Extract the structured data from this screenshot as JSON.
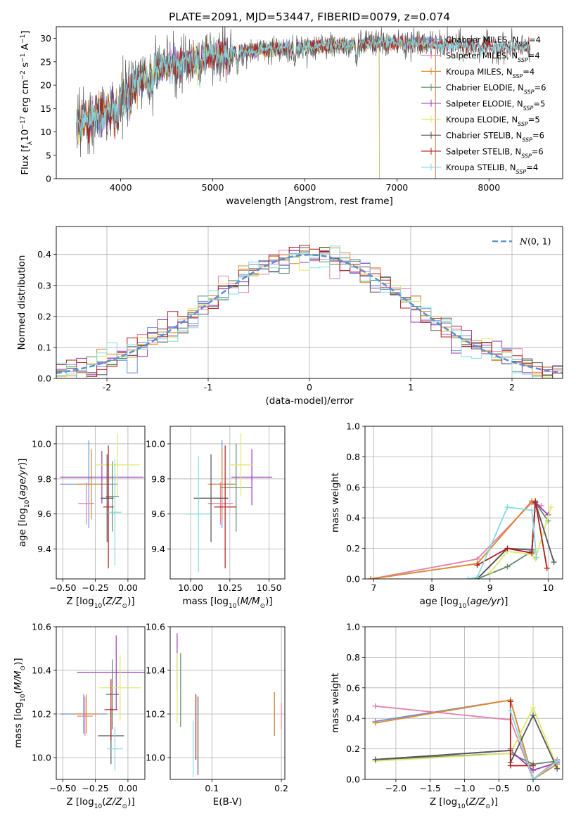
{
  "figure_title": "PLATE=2091, MJD=53447, FIBERID=0079, z=0.074",
  "colors": {
    "Chabrier MILES": "#6a8fd8",
    "Salpeter MILES": "#e47fae",
    "Kroupa MILES": "#e08a2a",
    "Chabrier ELODIE": "#5f8a67",
    "Salpeter ELODIE": "#9b3bb5",
    "Kroupa ELODIE": "#dfe86a",
    "Chabrier STELIB": "#555555",
    "Salpeter STELIB": "#b11d1d",
    "Kroupa STELIB": "#82dbe0"
  },
  "chart_data": [
    {
      "id": "spectrum",
      "type": "line",
      "xlabel": "wavelength [Angstrom, rest frame]",
      "ylabel": "Flux [f_λ 10^-17 erg cm^-2 s^-1 A^-1]",
      "xlim": [
        3300,
        8800
      ],
      "ylim": [
        0,
        32.5
      ],
      "xticks": [
        4000,
        5000,
        6000,
        7000,
        8000
      ],
      "yticks": [
        0,
        5,
        10,
        15,
        20,
        25,
        30
      ],
      "legend_position": "right",
      "series_labels": [
        "Chabrier MILES, N_SSP=4",
        "Salpeter MILES, N_SSP=4",
        "Kroupa MILES, N_SSP=4",
        "Chabrier ELODIE, N_SSP=6",
        "Salpeter ELODIE, N_SSP=5",
        "Kroupa ELODIE, N_SSP=5",
        "Chabrier STELIB, N_SSP=6",
        "Salpeter STELIB, N_SSP=6",
        "Kroupa STELIB, N_SSP=4"
      ],
      "series_names": [
        "Chabrier MILES",
        "Salpeter MILES",
        "Kroupa MILES",
        "Chabrier ELODIE",
        "Salpeter ELODIE",
        "Kroupa ELODIE",
        "Chabrier STELIB",
        "Salpeter STELIB",
        "Kroupa STELIB"
      ],
      "series_xrange": [
        [
          3520,
          7420
        ],
        [
          3520,
          7420
        ],
        [
          3520,
          7420
        ],
        [
          3520,
          6810
        ],
        [
          3520,
          6810
        ],
        [
          3520,
          6810
        ],
        [
          3520,
          8450
        ],
        [
          3520,
          8450
        ],
        [
          3520,
          8450
        ]
      ],
      "continuum": {
        "x": [
          3520,
          3600,
          3700,
          3800,
          3900,
          4000,
          4100,
          4200,
          4300,
          4500,
          4800,
          5000,
          5200,
          5500,
          5800,
          6000,
          6300,
          6500,
          6800,
          7000,
          7400,
          7800,
          8000,
          8450
        ],
        "y": [
          11.5,
          12,
          13,
          14,
          15,
          17,
          19,
          21,
          22.5,
          24,
          25.5,
          26.5,
          27,
          27.5,
          28,
          28.2,
          28.5,
          28.8,
          29,
          29,
          28.7,
          28.4,
          28.2,
          28
        ]
      }
    },
    {
      "id": "residuals",
      "type": "histogram",
      "xlabel": "(data-model)/error",
      "ylabel": "Normed distribution",
      "xlim": [
        -2.5,
        2.5
      ],
      "ylim": [
        0,
        0.49
      ],
      "xticks": [
        -2,
        -1,
        0,
        1,
        2
      ],
      "yticks": [
        0.0,
        0.1,
        0.2,
        0.3,
        0.4
      ],
      "bin_width": 0.1,
      "legend_label": "N(0,1)",
      "legend_position": "top-right"
    },
    {
      "id": "age-vs-Z",
      "type": "errorbar",
      "xlabel": "Z [log10(Z/Z⊙)]",
      "ylabel": "age [log10(age/yr)]",
      "xlim": [
        -0.55,
        0.13
      ],
      "ylim": [
        9.23,
        10.1
      ],
      "xticks": [
        -0.5,
        -0.25,
        0.0
      ],
      "xtick_labels": [
        "−0.50",
        "−0.25",
        "0.00"
      ],
      "yticks": [
        9.4,
        9.6,
        9.8,
        10.0
      ],
      "points": [
        {
          "series": "Chabrier MILES",
          "x": -0.3,
          "xerr": 0.22,
          "y": 9.77,
          "yerr": 0.25
        },
        {
          "series": "Salpeter MILES",
          "x": -0.32,
          "xerr": 0.06,
          "y": 9.66,
          "yerr": 0.12
        },
        {
          "series": "Kroupa MILES",
          "x": -0.28,
          "xerr": 0.12,
          "y": 9.77,
          "yerr": 0.2
        },
        {
          "series": "Chabrier ELODIE",
          "x": -0.12,
          "xerr": 0.05,
          "y": 9.7,
          "yerr": 0.2
        },
        {
          "series": "Salpeter ELODIE",
          "x": -0.2,
          "xerr": 0.32,
          "y": 9.81,
          "yerr": 0.15
        },
        {
          "series": "Kroupa ELODIE",
          "x": -0.08,
          "xerr": 0.17,
          "y": 9.88,
          "yerr": 0.18
        },
        {
          "series": "Chabrier STELIB",
          "x": -0.16,
          "xerr": 0.05,
          "y": 9.69,
          "yerr": 0.25
        },
        {
          "series": "Salpeter STELIB",
          "x": -0.15,
          "xerr": 0.04,
          "y": 9.64,
          "yerr": 0.35
        },
        {
          "series": "Kroupa STELIB",
          "x": -0.1,
          "xerr": 0.05,
          "y": 9.61,
          "yerr": 0.3
        }
      ]
    },
    {
      "id": "age-vs-mass",
      "type": "errorbar",
      "xlabel": "mass [log10(M/M⊙)]",
      "ylabel": "",
      "xlim": [
        9.87,
        10.6
      ],
      "ylim": [
        9.23,
        10.1
      ],
      "xticks": [
        10.0,
        10.25,
        10.5
      ],
      "xtick_labels": [
        "10.00",
        "10.25",
        "10.50"
      ],
      "yticks": [
        9.4,
        9.6,
        9.8,
        10.0
      ],
      "points": [
        {
          "series": "Chabrier MILES",
          "x": 10.2,
          "xerr": 0.08,
          "y": 9.77,
          "yerr": 0.25
        },
        {
          "series": "Salpeter MILES",
          "x": 10.19,
          "xerr": 0.08,
          "y": 9.66,
          "yerr": 0.12
        },
        {
          "series": "Kroupa MILES",
          "x": 10.2,
          "xerr": 0.09,
          "y": 9.77,
          "yerr": 0.2
        },
        {
          "series": "Chabrier ELODIE",
          "x": 10.29,
          "xerr": 0.1,
          "y": 9.75,
          "yerr": 0.25
        },
        {
          "series": "Salpeter ELODIE",
          "x": 10.39,
          "xerr": 0.13,
          "y": 9.81,
          "yerr": 0.16
        },
        {
          "series": "Kroupa ELODIE",
          "x": 10.32,
          "xerr": 0.07,
          "y": 9.88,
          "yerr": 0.18
        },
        {
          "series": "Chabrier STELIB",
          "x": 10.13,
          "xerr": 0.11,
          "y": 9.69,
          "yerr": 0.25
        },
        {
          "series": "Salpeter STELIB",
          "x": 10.22,
          "xerr": 0.07,
          "y": 9.64,
          "yerr": 0.35
        },
        {
          "series": "Kroupa STELIB",
          "x": 10.05,
          "xerr": 0.08,
          "y": 9.6,
          "yerr": 0.33
        }
      ]
    },
    {
      "id": "mass-weight-vs-age",
      "type": "line",
      "xlabel": "age [log10(age/yr)]",
      "ylabel": "mass weight",
      "xlim": [
        6.85,
        10.25
      ],
      "ylim": [
        0,
        1.0
      ],
      "xticks": [
        7,
        8,
        9,
        10
      ],
      "yticks": [
        0.0,
        0.2,
        0.4,
        0.6,
        0.8,
        1.0
      ],
      "series": [
        {
          "name": "Chabrier MILES",
          "x": [
            6.95,
            8.78,
            9.72,
            9.78
          ],
          "y": [
            0.0,
            0.1,
            0.51,
            0.49
          ]
        },
        {
          "name": "Salpeter MILES",
          "x": [
            6.95,
            8.78,
            9.72,
            9.88
          ],
          "y": [
            0.0,
            0.13,
            0.5,
            0.48
          ]
        },
        {
          "name": "Kroupa MILES",
          "x": [
            6.95,
            8.78,
            9.72,
            9.78
          ],
          "y": [
            0.0,
            0.1,
            0.51,
            0.49
          ]
        },
        {
          "name": "Chabrier ELODIE",
          "x": [
            8.78,
            9.3,
            9.72,
            9.78,
            10.0
          ],
          "y": [
            0.0,
            0.08,
            0.18,
            0.5,
            0.38
          ]
        },
        {
          "name": "Salpeter ELODIE",
          "x": [
            8.78,
            9.3,
            9.72,
            9.78,
            10.0
          ],
          "y": [
            0.0,
            0.2,
            0.17,
            0.5,
            0.42
          ]
        },
        {
          "name": "Kroupa ELODIE",
          "x": [
            9.0,
            9.3,
            9.72,
            9.78,
            10.05
          ],
          "y": [
            0.04,
            0.18,
            0.16,
            0.13,
            0.47
          ]
        },
        {
          "name": "Chabrier STELIB",
          "x": [
            8.78,
            9.3,
            9.72,
            9.78,
            10.1
          ],
          "y": [
            0.0,
            0.2,
            0.19,
            0.5,
            0.11
          ]
        },
        {
          "name": "Salpeter STELIB",
          "x": [
            8.78,
            9.3,
            9.72,
            9.78,
            9.98
          ],
          "y": [
            0.09,
            0.2,
            0.17,
            0.51,
            0.07
          ]
        },
        {
          "name": "Kroupa STELIB",
          "x": [
            8.62,
            8.78,
            9.3,
            9.72,
            9.8
          ],
          "y": [
            0.0,
            0.01,
            0.47,
            0.45,
            0.14
          ]
        }
      ]
    },
    {
      "id": "mass-vs-Z",
      "type": "errorbar",
      "xlabel": "Z [log10(Z/Z⊙)]",
      "ylabel": "mass [log10(M/M⊙)]",
      "xlim": [
        -0.55,
        0.13
      ],
      "ylim": [
        9.9,
        10.6
      ],
      "xticks": [
        -0.5,
        -0.25,
        0.0
      ],
      "xtick_labels": [
        "−0.50",
        "−0.25",
        "0.00"
      ],
      "yticks": [
        10.0,
        10.2,
        10.4,
        10.6
      ],
      "points": [
        {
          "series": "Chabrier MILES",
          "x": -0.34,
          "xerr": 0.18,
          "y": 10.2,
          "yerr": 0.09
        },
        {
          "series": "Salpeter MILES",
          "x": -0.33,
          "xerr": 0.06,
          "y": 10.19,
          "yerr": 0.09
        },
        {
          "series": "Kroupa MILES",
          "x": -0.32,
          "xerr": 0.1,
          "y": 10.2,
          "yerr": 0.09
        },
        {
          "series": "Chabrier ELODIE",
          "x": -0.12,
          "xerr": 0.05,
          "y": 10.29,
          "yerr": 0.16
        },
        {
          "series": "Salpeter ELODIE",
          "x": -0.09,
          "xerr": 0.3,
          "y": 10.39,
          "yerr": 0.17
        },
        {
          "series": "Kroupa ELODIE",
          "x": -0.06,
          "xerr": 0.16,
          "y": 10.32,
          "yerr": 0.15
        },
        {
          "series": "Chabrier STELIB",
          "x": -0.13,
          "xerr": 0.1,
          "y": 10.1,
          "yerr": 0.13
        },
        {
          "series": "Salpeter STELIB",
          "x": -0.13,
          "xerr": 0.05,
          "y": 10.22,
          "yerr": 0.14
        },
        {
          "series": "Kroupa STELIB",
          "x": -0.1,
          "xerr": 0.06,
          "y": 10.04,
          "yerr": 0.1
        }
      ]
    },
    {
      "id": "mass-vs-EBV",
      "type": "errorbar",
      "xlabel": "E(B-V)",
      "ylabel": "",
      "xlim": [
        0.04,
        0.205
      ],
      "ylim": [
        9.9,
        10.6
      ],
      "xticks": [
        0.1,
        0.2
      ],
      "xtick_labels": [
        "0.1",
        "0.2"
      ],
      "yticks": [
        10.0,
        10.2,
        10.4,
        10.6
      ],
      "points": [
        {
          "series": "Chabrier MILES",
          "x": 0.19,
          "xerr": 0.0,
          "y": 10.2,
          "yerr": 0.1
        },
        {
          "series": "Salpeter MILES",
          "x": 0.2,
          "xerr": 0.0,
          "y": 10.19,
          "yerr": 0.06
        },
        {
          "series": "Kroupa MILES",
          "x": 0.19,
          "xerr": 0.0,
          "y": 10.2,
          "yerr": 0.1
        },
        {
          "series": "Chabrier ELODIE",
          "x": 0.055,
          "xerr": 0.0,
          "y": 10.31,
          "yerr": 0.17
        },
        {
          "series": "Salpeter ELODIE",
          "x": 0.05,
          "xerr": 0.0,
          "y": 10.44,
          "yerr": 0.13
        },
        {
          "series": "Kroupa ELODIE",
          "x": 0.05,
          "xerr": 0.0,
          "y": 10.32,
          "yerr": 0.16
        },
        {
          "series": "Chabrier STELIB",
          "x": 0.08,
          "xerr": 0.0,
          "y": 10.1,
          "yerr": 0.18
        },
        {
          "series": "Salpeter STELIB",
          "x": 0.077,
          "xerr": 0.0,
          "y": 10.14,
          "yerr": 0.15
        },
        {
          "series": "Kroupa STELIB",
          "x": 0.073,
          "xerr": 0.0,
          "y": 10.04,
          "yerr": 0.13
        }
      ]
    },
    {
      "id": "mass-weight-vs-Z",
      "type": "line",
      "xlabel": "Z [log10(Z/Z⊙)]",
      "ylabel": "mass weight",
      "xlim": [
        -2.45,
        0.43
      ],
      "ylim": [
        0,
        1.0
      ],
      "xticks": [
        -2.0,
        -1.5,
        -1.0,
        -0.5,
        0.0
      ],
      "xtick_labels": [
        "−2.0",
        "−1.5",
        "−1.0",
        "−0.5",
        "0.0"
      ],
      "yticks": [
        0.0,
        0.2,
        0.4,
        0.6,
        0.8,
        1.0
      ],
      "series": [
        {
          "name": "Chabrier MILES",
          "x": [
            -2.3,
            -0.33,
            0.0,
            0.35
          ],
          "y": [
            0.38,
            0.52,
            0.0,
            0.1
          ]
        },
        {
          "name": "Salpeter MILES",
          "x": [
            -2.3,
            -0.33,
            0.0,
            0.35
          ],
          "y": [
            0.48,
            0.39,
            0.0,
            0.13
          ]
        },
        {
          "name": "Kroupa MILES",
          "x": [
            -2.3,
            -0.33,
            0.0,
            0.35
          ],
          "y": [
            0.37,
            0.52,
            0.0,
            0.1
          ]
        },
        {
          "name": "Chabrier ELODIE",
          "x": [
            -2.3,
            -0.33,
            0.0,
            0.35
          ],
          "y": [
            0.13,
            0.17,
            0.1,
            0.12
          ]
        },
        {
          "name": "Salpeter ELODIE",
          "x": [
            -2.3,
            -0.33,
            0.0,
            0.35
          ],
          "y": [
            0.13,
            0.19,
            0.06,
            0.11
          ]
        },
        {
          "name": "Kroupa ELODIE",
          "x": [
            -2.3,
            -0.33,
            0.0,
            0.35
          ],
          "y": [
            0.12,
            0.17,
            0.47,
            0.08
          ]
        },
        {
          "name": "Chabrier STELIB",
          "x": [
            -2.3,
            -0.33,
            -0.33,
            0.0,
            0.35
          ],
          "y": [
            0.13,
            0.19,
            0.11,
            0.42,
            0.07
          ]
        },
        {
          "name": "Salpeter STELIB",
          "x": [
            -0.33,
            -0.33,
            -0.33,
            0.0
          ],
          "y": [
            0.51,
            0.2,
            0.09,
            0.09
          ]
        },
        {
          "name": "Kroupa STELIB",
          "x": [
            -0.33,
            0.0,
            0.35
          ],
          "y": [
            0.45,
            0.0,
            0.12
          ]
        }
      ]
    }
  ]
}
